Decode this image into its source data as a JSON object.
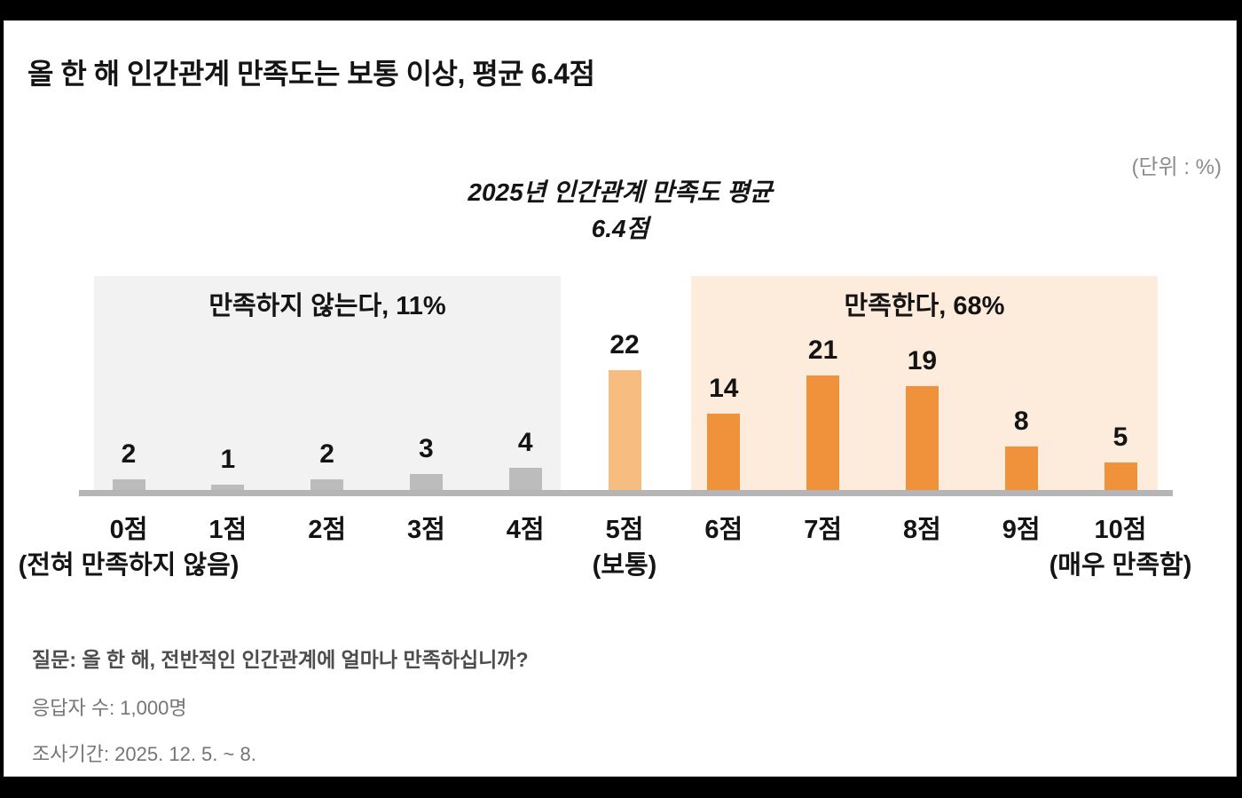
{
  "header": {
    "title": "올 한 해 인간관계 만족도는 보통 이상, 평균 6.4점",
    "unit_label": "(단위 : %)"
  },
  "chart_data": {
    "type": "bar",
    "title": "2025년 인간관계 만족도 평균 6.4점",
    "title_lines": [
      "2025년 인간관계 만족도 평균",
      "6.4점"
    ],
    "unit": "%",
    "categories": [
      "0점",
      "1점",
      "2점",
      "3점",
      "4점",
      "5점",
      "6점",
      "7점",
      "8점",
      "9점",
      "10점"
    ],
    "values": [
      2,
      1,
      2,
      3,
      4,
      22,
      14,
      21,
      19,
      8,
      5
    ],
    "bar_colors": [
      "#bcbcbc",
      "#bcbcbc",
      "#bcbcbc",
      "#bcbcbc",
      "#bcbcbc",
      "#f7bc80",
      "#f0913c",
      "#f0913c",
      "#f0913c",
      "#f0913c",
      "#f0913c"
    ],
    "category_sublabels": {
      "0점": "(전혀 만족하지 않음)",
      "5점": "(보통)",
      "10점": "(매우 만족함)"
    },
    "regions": [
      {
        "label": "만족하지 않는다, 11%",
        "categories": [
          "0점",
          "4점"
        ],
        "value": "11%",
        "background": "#f2f2f2"
      },
      {
        "label": "만족한다, 68%",
        "categories": [
          "6점",
          "10점"
        ],
        "value": "68%",
        "background": "#fdecdc"
      }
    ],
    "axis_color": "#b5b5b5",
    "ylim": [
      0,
      25
    ],
    "grid": false,
    "legend": false
  },
  "footer": {
    "question": "질문: 올 한 해, 전반적인 인간관계에 얼마나 만족하십니까?",
    "respondents": "응답자 수: 1,000명",
    "period": "조사기간: 2025. 12. 5. ~ 8."
  }
}
